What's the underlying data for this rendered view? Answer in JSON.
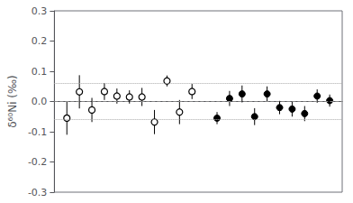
{
  "chart_data": {
    "type": "scatter",
    "ylabel": "δ⁶⁰Ni (‰)",
    "xlim": [
      0,
      23
    ],
    "ylim": [
      -0.3,
      0.3
    ],
    "yticks": [
      -0.3,
      -0.2,
      -0.1,
      {
        "value": 0,
        "label": "0.0"
      },
      0.1,
      0.2,
      0.3
    ],
    "grid": false,
    "tick_labels": "y",
    "series": [
      {
        "color": "black",
        "marker": "open circle",
        "x": [
          1,
          2,
          3,
          4,
          5,
          6,
          7,
          8,
          9,
          10,
          11
        ],
        "values": [
          -0.055,
          0.032,
          -0.028,
          0.033,
          0.018,
          0.015,
          0.015,
          -0.068,
          0.068,
          -0.035,
          0.033
        ],
        "yerr": [
          0.055,
          0.055,
          0.04,
          0.028,
          0.025,
          0.022,
          0.03,
          0.04,
          0.018,
          0.04,
          0.025
        ]
      },
      {
        "color": "black",
        "marker": "filled circle",
        "x": [
          13,
          14,
          15,
          16,
          17,
          18,
          19,
          20,
          21,
          22
        ],
        "values": [
          -0.055,
          0.01,
          0.025,
          -0.05,
          0.025,
          -0.02,
          -0.025,
          -0.04,
          0.018,
          0.003
        ],
        "yerr": [
          0.02,
          0.025,
          0.028,
          0.028,
          0.025,
          0.022,
          0.025,
          0.025,
          0.022,
          0.02
        ]
      }
    ],
    "reference_lines": [
      {
        "y": 0,
        "line_style": "dashed",
        "color": "#888888"
      },
      {
        "y": 0.063,
        "line_style": "dotted",
        "color": "#aaaaaa"
      },
      {
        "y": -0.063,
        "line_style": "dotted",
        "color": "#aaaaaa"
      }
    ]
  }
}
